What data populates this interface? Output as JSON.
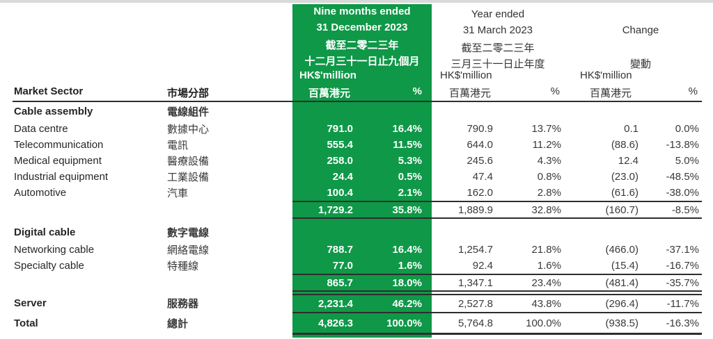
{
  "colors": {
    "highlight_green": "#0F9848",
    "rule_line": "#2d2d2d",
    "text": "#262626",
    "highlight_text": "#ffffff"
  },
  "header": {
    "market_sector_en": "Market Sector",
    "market_sector_zh": "市場分部",
    "period1": {
      "line1": "Nine months ended",
      "line2": "31 December 2023",
      "line3": "截至二零二三年",
      "line4": "十二月三十一日止九個月",
      "unit_en": "HK$'million",
      "unit_zh": "百萬港元",
      "pct": "%"
    },
    "period2": {
      "line1": "Year ended",
      "line2": "31 March 2023",
      "line3": "截至二零二三年",
      "line4": "三月三十一日止年度",
      "unit_en": "HK$'million",
      "unit_zh": "百萬港元",
      "pct": "%"
    },
    "change": {
      "title_en": "Change",
      "title_zh": "變動",
      "unit_en": "HK$'million",
      "unit_zh": "百萬港元",
      "pct": "%"
    }
  },
  "table": {
    "rows": [
      {
        "type": "section",
        "en": "Cable assembly",
        "zh": "電線組件"
      },
      {
        "type": "item",
        "en": "Data centre",
        "zh": "數據中心",
        "v1": "791.0",
        "p1": "16.4%",
        "v2": "790.9",
        "p2": "13.7%",
        "v3": "0.1",
        "p3": "0.0%"
      },
      {
        "type": "item",
        "en": "Telecommunication",
        "zh": "電訊",
        "v1": "555.4",
        "p1": "11.5%",
        "v2": "644.0",
        "p2": "11.2%",
        "v3": "(88.6)",
        "p3": "-13.8%"
      },
      {
        "type": "item",
        "en": "Medical equipment",
        "zh": "醫療設備",
        "v1": "258.0",
        "p1": "5.3%",
        "v2": "245.6",
        "p2": "4.3%",
        "v3": "12.4",
        "p3": "5.0%"
      },
      {
        "type": "item",
        "en": "Industrial equipment",
        "zh": "工業設備",
        "v1": "24.4",
        "p1": "0.5%",
        "v2": "47.4",
        "p2": "0.8%",
        "v3": "(23.0)",
        "p3": "-48.5%"
      },
      {
        "type": "item",
        "en": "Automotive",
        "zh": "汽車",
        "v1": "100.4",
        "p1": "2.1%",
        "v2": "162.0",
        "p2": "2.8%",
        "v3": "(61.6)",
        "p3": "-38.0%"
      },
      {
        "type": "subtotal",
        "en": "",
        "zh": "",
        "v1": "1,729.2",
        "p1": "35.8%",
        "v2": "1,889.9",
        "p2": "32.8%",
        "v3": "(160.7)",
        "p3": "-8.5%"
      },
      {
        "type": "gap"
      },
      {
        "type": "section",
        "en": "Digital cable",
        "zh": "數字電線"
      },
      {
        "type": "item",
        "en": "Networking cable",
        "zh": "網絡電線",
        "v1": "788.7",
        "p1": "16.4%",
        "v2": "1,254.7",
        "p2": "21.8%",
        "v3": "(466.0)",
        "p3": "-37.1%"
      },
      {
        "type": "item",
        "en": "Specialty cable",
        "zh": "特種線",
        "v1": "77.0",
        "p1": "1.6%",
        "v2": "92.4",
        "p2": "1.6%",
        "v3": "(15.4)",
        "p3": "-16.7%"
      },
      {
        "type": "subtotal",
        "en": "",
        "zh": "",
        "v1": "865.7",
        "p1": "18.0%",
        "v2": "1,347.1",
        "p2": "23.4%",
        "v3": "(481.4)",
        "p3": "-35.7%"
      },
      {
        "type": "gap-sm"
      },
      {
        "type": "server",
        "en": "Server",
        "zh": "服務器",
        "v1": "2,231.4",
        "p1": "46.2%",
        "v2": "2,527.8",
        "p2": "43.8%",
        "v3": "(296.4)",
        "p3": "-11.7%"
      },
      {
        "type": "total",
        "en": "Total",
        "zh": "總計",
        "v1": "4,826.3",
        "p1": "100.0%",
        "v2": "5,764.8",
        "p2": "100.0%",
        "v3": "(938.5)",
        "p3": "-16.3%"
      }
    ]
  }
}
